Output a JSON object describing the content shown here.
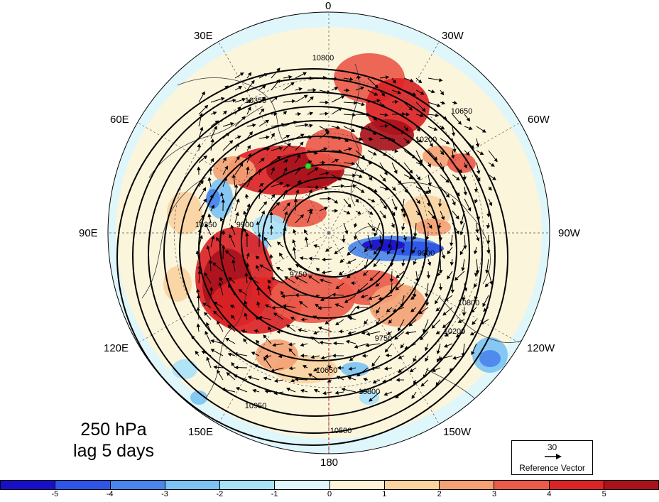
{
  "longitude_labels": [
    {
      "text": "0"
    },
    {
      "text": "30W"
    },
    {
      "text": "60W"
    },
    {
      "text": "90W"
    },
    {
      "text": "120W"
    },
    {
      "text": "150W"
    },
    {
      "text": "180"
    },
    {
      "text": "150E"
    },
    {
      "text": "120E"
    },
    {
      "text": "90E"
    },
    {
      "text": "60E"
    },
    {
      "text": "30E"
    }
  ],
  "caption": {
    "line1": "250 hPa",
    "line2": "lag 5 days"
  },
  "reference_vector": {
    "value": "30",
    "label": "Reference Vector"
  },
  "colorbar": {
    "colors": [
      "#1a0fc9",
      "#2e55e6",
      "#4a86ec",
      "#7cc3f3",
      "#a9e2f7",
      "#dff6fb",
      "#fdf4d9",
      "#fad3a1",
      "#f4a275",
      "#ec5a4a",
      "#dc2326",
      "#a9111b"
    ],
    "tick_labels": [
      "-5",
      "-4",
      "-3",
      "-2",
      "-1",
      "0",
      "1",
      "2",
      "3",
      "4",
      "5"
    ]
  },
  "contour_labels": [
    "10800",
    "10650",
    "10350",
    "9900",
    "9750",
    "10950",
    "10500",
    "10200"
  ],
  "marker_color": "#2fdc2f"
}
